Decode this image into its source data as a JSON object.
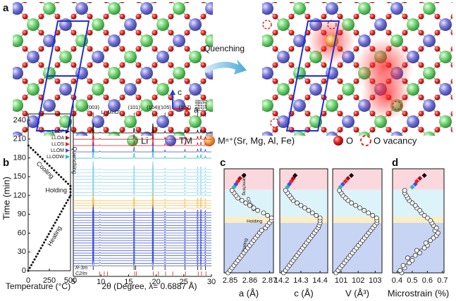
{
  "panel_labels": [
    "a",
    "b",
    "c",
    "d"
  ],
  "structure": {
    "arrow_label": "Quenching",
    "axis_labels": [
      "c",
      "a"
    ],
    "legend": [
      "Li",
      "TM",
      "Mⁿ⁺(Sr, Mg, Al, Fe)",
      "O",
      "O vacancy"
    ]
  },
  "chart_data": [
    {
      "type": "line",
      "xlabel": "Temperature (°C)",
      "ylabel": "Time (min)",
      "xlim": [
        0,
        500
      ],
      "xticks": [
        0,
        250,
        500
      ],
      "ylim": [
        0,
        250
      ],
      "yticks": [
        0,
        30,
        60,
        90,
        120,
        150,
        180,
        210,
        240
      ],
      "series": [
        {
          "name": "Heating",
          "color": "#4a6ee0",
          "x": [
            0,
            500
          ],
          "values": [
            0,
            120
          ]
        },
        {
          "name": "Holding",
          "color": "#e8a400",
          "x": [
            500,
            500
          ],
          "values": [
            120,
            135
          ]
        },
        {
          "name": "Cooling",
          "color": "#86c8ea",
          "x": [
            500,
            0
          ],
          "values": [
            135,
            200
          ]
        }
      ],
      "annotation": {
        "text": "Quenching",
        "color": "#e02020"
      }
    },
    {
      "type": "xrd",
      "xlabel": "2θ (Degree, λ= 0.6887 Å)",
      "xlim": [
        5,
        30
      ],
      "xticks": [
        5,
        10,
        15,
        20,
        25,
        30
      ],
      "peaks": [
        {
          "label": "(003)",
          "x": 8.6
        },
        {
          "label": "(101)",
          "x": 16.0
        },
        {
          "label": "(104)",
          "x": 19.4
        },
        {
          "label": "(105)",
          "x": 21.6
        },
        {
          "label": "(107)",
          "x": 25.2
        },
        {
          "label": "(018)",
          "x": 27.5
        },
        {
          "label": "(110)",
          "x": 28.1
        },
        {
          "label": "(113)",
          "x": 28.9
        }
      ],
      "phase": {
        "label": "Li₂MnO₃",
        "x": 9.8
      },
      "samples": [
        {
          "name": "LLOF",
          "color": "#000000"
        },
        {
          "name": "LLOA",
          "color": "#a0101c"
        },
        {
          "name": "LLOS",
          "color": "#e8202a"
        },
        {
          "name": "LLOM",
          "color": "#4050d8"
        },
        {
          "name": "LLODW",
          "color": "#20b8c8"
        }
      ],
      "references": [
        {
          "name": "R-3m",
          "color": "#000000",
          "positions": [
            8.6,
            16.0,
            16.3,
            19.4,
            21.6,
            25.2,
            27.5,
            28.1,
            28.9
          ]
        },
        {
          "name": "C2/m",
          "color": "#e02020",
          "positions": [
            9.8,
            10.6,
            11.2,
            16.1,
            16.4,
            19.5,
            20.4,
            21.7,
            23.0,
            25.3,
            27.6,
            28.2,
            29.0
          ]
        }
      ]
    },
    {
      "type": "scatter",
      "xlabel": "a (Å)",
      "xlim": [
        2.847,
        2.872
      ],
      "xticks": [
        2.85,
        2.86,
        2.87
      ],
      "ylim": [
        0,
        250
      ],
      "bands": [
        {
          "label": "Heating",
          "from": 0,
          "to": 120,
          "color": "#c8d4f4"
        },
        {
          "label": "Holding",
          "from": 120,
          "to": 135,
          "color": "#fbeec4"
        },
        {
          "label": "Cooling",
          "from": 135,
          "to": 200,
          "color": "#ddf3fa"
        },
        {
          "label": "Quenching",
          "from": 200,
          "to": 250,
          "color": "#fbd8dd"
        }
      ],
      "y": [
        0,
        6,
        12,
        18,
        24,
        30,
        36,
        42,
        48,
        54,
        60,
        66,
        72,
        78,
        84,
        90,
        96,
        102,
        108,
        114,
        120,
        126,
        132,
        138,
        144,
        150,
        156,
        162,
        168,
        174,
        180,
        186,
        192,
        198
      ],
      "x": [
        2.849,
        2.85,
        2.851,
        2.852,
        2.853,
        2.854,
        2.855,
        2.856,
        2.857,
        2.858,
        2.859,
        2.86,
        2.861,
        2.862,
        2.863,
        2.864,
        2.865,
        2.866,
        2.868,
        2.869,
        2.87,
        2.871,
        2.871,
        2.869,
        2.867,
        2.864,
        2.862,
        2.86,
        2.858,
        2.856,
        2.854,
        2.853,
        2.852,
        2.851
      ],
      "quench": {
        "y": [
          206,
          213,
          220,
          227,
          234
        ],
        "x": [
          2.852,
          2.853,
          2.854,
          2.855,
          2.857
        ],
        "colors": [
          "#20b8c8",
          "#4050d8",
          "#e8202a",
          "#a0101c",
          "#000000"
        ]
      }
    },
    {
      "type": "scatter",
      "xlabel": "c (Å)",
      "xlim": [
        14.19,
        14.44
      ],
      "xticks": [
        14.2,
        14.3,
        14.4
      ],
      "ylim": [
        0,
        250
      ],
      "bands": [
        {
          "from": 0,
          "to": 120,
          "color": "#c8d4f4"
        },
        {
          "from": 120,
          "to": 135,
          "color": "#fbeec4"
        },
        {
          "from": 135,
          "to": 200,
          "color": "#ddf3fa"
        },
        {
          "from": 200,
          "to": 250,
          "color": "#fbd8dd"
        }
      ],
      "y": [
        0,
        6,
        12,
        18,
        24,
        30,
        36,
        42,
        48,
        54,
        60,
        66,
        72,
        78,
        84,
        90,
        96,
        102,
        108,
        114,
        120,
        126,
        132,
        138,
        144,
        150,
        156,
        162,
        168,
        174,
        180,
        186,
        192,
        198
      ],
      "x": [
        14.21,
        14.22,
        14.23,
        14.24,
        14.25,
        14.26,
        14.27,
        14.28,
        14.29,
        14.3,
        14.31,
        14.32,
        14.33,
        14.34,
        14.35,
        14.36,
        14.37,
        14.38,
        14.39,
        14.395,
        14.4,
        14.4,
        14.4,
        14.38,
        14.36,
        14.34,
        14.32,
        14.3,
        14.28,
        14.26,
        14.25,
        14.24,
        14.23,
        14.22
      ],
      "quench": {
        "y": [
          206,
          213,
          220,
          227,
          234
        ],
        "x": [
          14.23,
          14.24,
          14.25,
          14.26,
          14.27
        ],
        "colors": [
          "#20b8c8",
          "#4050d8",
          "#e8202a",
          "#a0101c",
          "#000000"
        ]
      }
    },
    {
      "type": "scatter",
      "xlabel": "V (Å³)",
      "xlim": [
        100.5,
        103.4
      ],
      "xticks": [
        101,
        102,
        103
      ],
      "ylim": [
        0,
        250
      ],
      "bands": [
        {
          "from": 0,
          "to": 120,
          "color": "#c8d4f4"
        },
        {
          "from": 120,
          "to": 135,
          "color": "#fbeec4"
        },
        {
          "from": 135,
          "to": 200,
          "color": "#ddf3fa"
        },
        {
          "from": 200,
          "to": 250,
          "color": "#fbd8dd"
        }
      ],
      "y": [
        0,
        6,
        12,
        18,
        24,
        30,
        36,
        42,
        48,
        54,
        60,
        66,
        72,
        78,
        84,
        90,
        96,
        102,
        108,
        114,
        120,
        126,
        132,
        138,
        144,
        150,
        156,
        162,
        168,
        174,
        180,
        186,
        192,
        198
      ],
      "x": [
        100.7,
        100.82,
        100.94,
        101.06,
        101.18,
        101.3,
        101.42,
        101.54,
        101.66,
        101.78,
        101.9,
        102.02,
        102.14,
        102.26,
        102.38,
        102.5,
        102.62,
        102.74,
        102.86,
        102.98,
        103.1,
        103.1,
        103.08,
        102.85,
        102.6,
        102.35,
        102.1,
        101.85,
        101.6,
        101.4,
        101.25,
        101.1,
        101.0,
        100.9
      ],
      "quench": {
        "y": [
          206,
          213,
          220,
          227,
          234
        ],
        "x": [
          100.95,
          101.1,
          101.25,
          101.4,
          101.6
        ],
        "colors": [
          "#20b8c8",
          "#4050d8",
          "#e8202a",
          "#a0101c",
          "#000000"
        ]
      }
    },
    {
      "type": "scatter",
      "xlabel": "Microstrain (%)",
      "xlim": [
        0.37,
        0.71
      ],
      "xticks": [
        0.4,
        0.5,
        0.6,
        0.7
      ],
      "ylim": [
        0,
        250
      ],
      "line": true,
      "bands": [
        {
          "from": 0,
          "to": 120,
          "color": "#c8d4f4"
        },
        {
          "from": 120,
          "to": 135,
          "color": "#fbeec4"
        },
        {
          "from": 135,
          "to": 200,
          "color": "#ddf3fa"
        },
        {
          "from": 200,
          "to": 250,
          "color": "#fbd8dd"
        }
      ],
      "y": [
        0,
        6,
        12,
        18,
        24,
        30,
        36,
        42,
        48,
        54,
        60,
        66,
        72,
        78,
        84,
        90,
        96,
        102,
        108,
        114,
        120,
        126,
        132,
        138,
        144,
        150,
        156,
        162,
        168,
        174,
        180,
        186,
        192,
        198
      ],
      "x": [
        0.43,
        0.42,
        0.45,
        0.44,
        0.48,
        0.5,
        0.47,
        0.52,
        0.55,
        0.53,
        0.58,
        0.6,
        0.59,
        0.62,
        0.64,
        0.66,
        0.67,
        0.65,
        0.66,
        0.64,
        0.63,
        0.62,
        0.6,
        0.58,
        0.56,
        0.55,
        0.53,
        0.52,
        0.5,
        0.48,
        0.47,
        0.46,
        0.45,
        0.45
      ],
      "quench": {
        "y": [
          206,
          213,
          220,
          227,
          234
        ],
        "x": [
          0.5,
          0.52,
          0.53,
          0.55,
          0.58
        ],
        "colors": [
          "#20b8c8",
          "#4050d8",
          "#e8202a",
          "#a0101c",
          "#000000"
        ]
      }
    }
  ]
}
